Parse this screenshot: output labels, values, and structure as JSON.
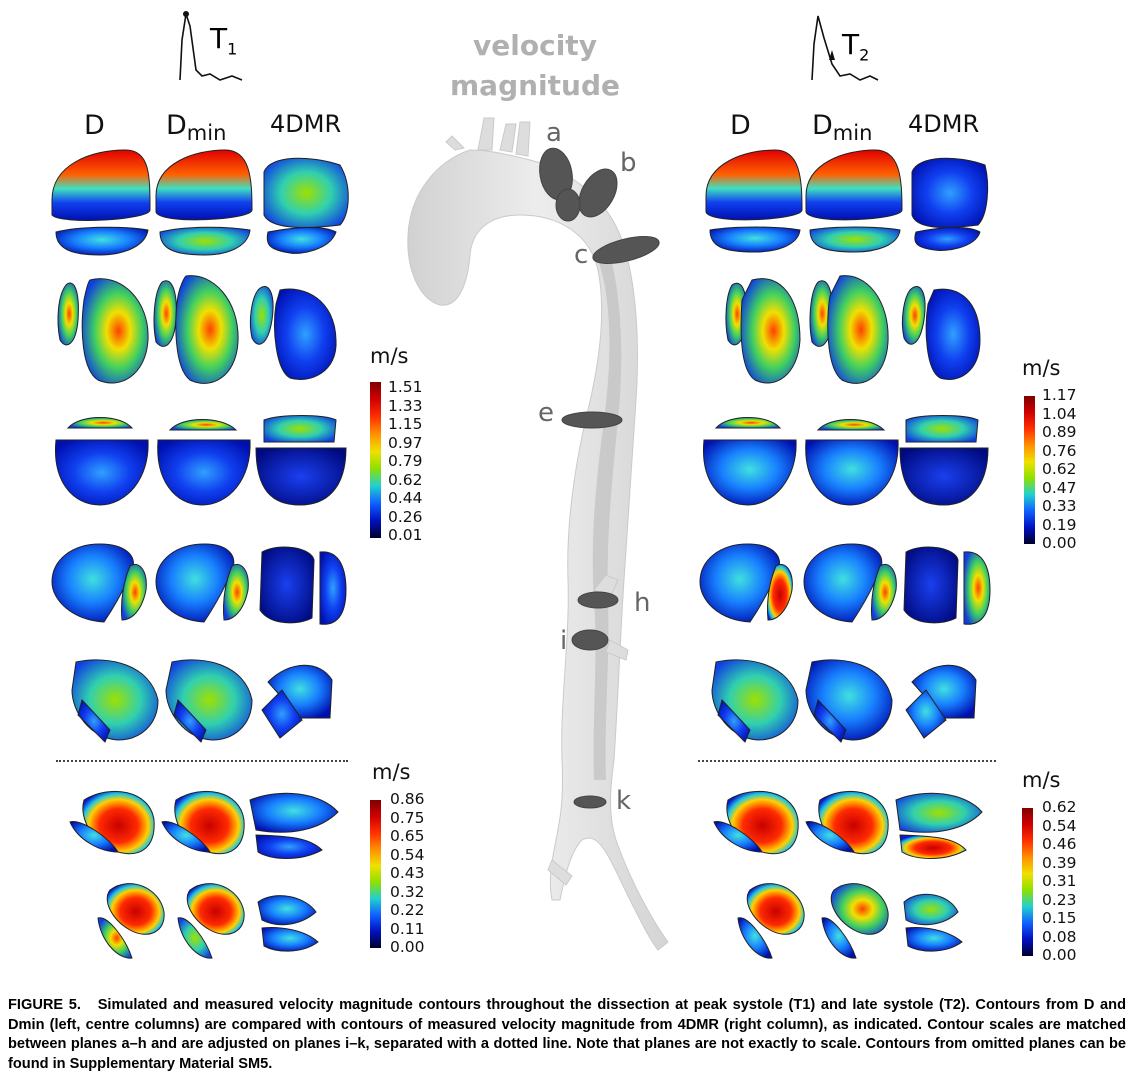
{
  "header": {
    "t1_label": "T",
    "t1_sub": "1",
    "t2_label": "T",
    "t2_sub": "2",
    "center_title_line1": "velocity",
    "center_title_line2": "magnitude"
  },
  "columns": {
    "left": [
      "D",
      "D",
      "4DMR"
    ],
    "left_subs": [
      "",
      "min",
      ""
    ],
    "right": [
      "D",
      "D",
      "4DMR"
    ],
    "right_subs": [
      "",
      "min",
      ""
    ]
  },
  "planes": [
    "a",
    "b",
    "c",
    "e",
    "h",
    "i",
    "k"
  ],
  "scales": {
    "unit": "m/s",
    "t1_upper": [
      "1.51",
      "1.33",
      "1.15",
      "0.97",
      "0.79",
      "0.62",
      "0.44",
      "0.26",
      "0.01"
    ],
    "t2_upper": [
      "1.17",
      "1.04",
      "0.89",
      "0.76",
      "0.62",
      "0.47",
      "0.33",
      "0.19",
      "0.00"
    ],
    "t1_lower": [
      "0.86",
      "0.75",
      "0.65",
      "0.54",
      "0.43",
      "0.32",
      "0.22",
      "0.11",
      "0.00"
    ],
    "t2_lower": [
      "0.62",
      "0.54",
      "0.46",
      "0.39",
      "0.31",
      "0.23",
      "0.15",
      "0.08",
      "0.00"
    ]
  },
  "caption": {
    "label": "FIGURE 5.",
    "text": "Simulated and measured velocity magnitude contours throughout the dissection at peak systole (T1) and late systole (T2). Contours from D and Dmin (left, centre columns) are compared with contours of measured velocity magnitude from 4DMR (right column), as indicated. Contour scales are matched between planes a–h and are adjusted on planes i–k, separated with a dotted line. Note that planes are not exactly to scale. Contours from omitted planes can be found in Supplementary Material SM5."
  },
  "colors": {
    "high": "#d00000",
    "mid": "#f0e000",
    "low": "#0010c0",
    "aorta": "#d8d8d8",
    "plane": "#555555"
  }
}
